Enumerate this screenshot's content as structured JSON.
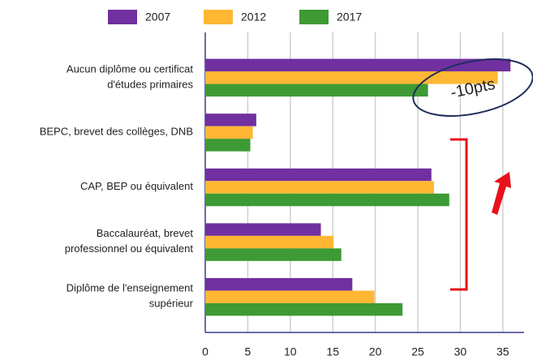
{
  "chart_data": {
    "type": "hbar",
    "categories": [
      [
        "Aucun diplôme ou certificat",
        "d'études primaires"
      ],
      [
        "BEPC, brevet des collèges, DNB"
      ],
      [
        "CAP, BEP ou équivalent"
      ],
      [
        "Baccalauréat, brevet",
        "professionnel ou équivalent"
      ],
      [
        "Diplôme de l'enseignement",
        "supérieur"
      ]
    ],
    "series": [
      {
        "name": "2007",
        "color": "#7030a0",
        "values": [
          35.9,
          6.0,
          26.6,
          13.6,
          17.3
        ]
      },
      {
        "name": "2012",
        "color": "#ffb734",
        "values": [
          34.4,
          5.6,
          26.9,
          15.1,
          19.9
        ]
      },
      {
        "name": "2017",
        "color": "#3d9a34",
        "values": [
          26.2,
          5.3,
          28.7,
          16.0,
          23.2
        ]
      }
    ],
    "xlim": [
      0,
      37.5
    ],
    "xticks": [
      0,
      5,
      10,
      15,
      20,
      25,
      30,
      35
    ],
    "grid": true,
    "annotations": [
      "-10pts"
    ]
  }
}
